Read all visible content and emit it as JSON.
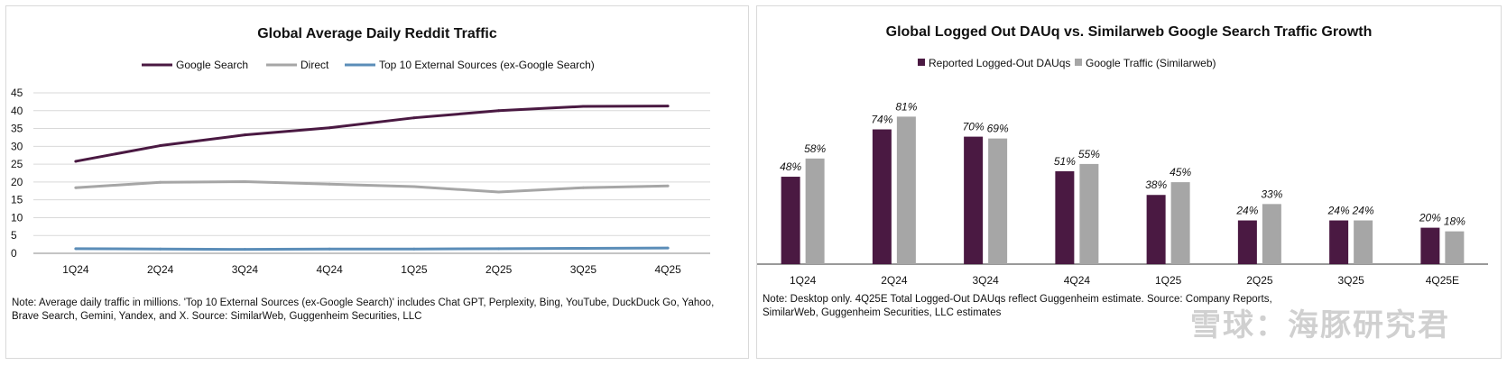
{
  "chart_data": [
    {
      "type": "line",
      "title": "Global Average Daily Reddit Traffic",
      "categories": [
        "1Q24",
        "2Q24",
        "3Q24",
        "4Q24",
        "1Q25",
        "2Q25",
        "3Q25",
        "4Q25"
      ],
      "ylim": [
        0,
        45
      ],
      "yticks": [
        0,
        5,
        10,
        15,
        20,
        25,
        30,
        35,
        40,
        45
      ],
      "grid": true,
      "legend": "top",
      "series": [
        {
          "name": "Google Search",
          "color": "#4a1942",
          "values": [
            25.8,
            30.2,
            33.2,
            35.2,
            38.0,
            40.0,
            41.2,
            41.3
          ]
        },
        {
          "name": "Direct",
          "color": "#a6a6a6",
          "values": [
            18.4,
            19.9,
            20.1,
            19.4,
            18.7,
            17.2,
            18.4,
            18.9
          ]
        },
        {
          "name": "Top 10 External Sources (ex-Google Search)",
          "color": "#5b8db8",
          "values": [
            1.3,
            1.2,
            1.1,
            1.2,
            1.2,
            1.3,
            1.4,
            1.5
          ]
        }
      ],
      "note": "Note: Average daily traffic in millions. 'Top 10 External Sources (ex-Google Search)' includes Chat GPT, Perplexity, Bing, YouTube, DuckDuck Go, Yahoo, Brave Search, Gemini, Yandex, and X. Source: SimilarWeb, Guggenheim Securities, LLC"
    },
    {
      "type": "bar",
      "title": "Global Logged Out DAUq vs. Similarweb Google Search Traffic Growth",
      "categories": [
        "1Q24",
        "2Q24",
        "3Q24",
        "4Q24",
        "1Q25",
        "2Q25",
        "3Q25",
        "4Q25E"
      ],
      "ylim": [
        0,
        100
      ],
      "grid": false,
      "legend": "top",
      "series": [
        {
          "name": "Reported Logged-Out DAUqs",
          "color": "#4a1942",
          "values": [
            48,
            74,
            70,
            51,
            38,
            24,
            24,
            20
          ],
          "labels": [
            "48%",
            "74%",
            "70%",
            "51%",
            "38%",
            "24%",
            "24%",
            "20%"
          ]
        },
        {
          "name": "Google Traffic (Similarweb)",
          "color": "#a6a6a6",
          "values": [
            58,
            81,
            69,
            55,
            45,
            33,
            24,
            18
          ],
          "labels": [
            "58%",
            "81%",
            "69%",
            "55%",
            "45%",
            "33%",
            "24%",
            "18%"
          ]
        }
      ],
      "note": "Note: Desktop only. 4Q25E Total Logged-Out DAUqs reflect Guggenheim estimate. Source: Company Reports, SimilarWeb, Guggenheim Securities, LLC estimates"
    }
  ],
  "watermark": "雪球：海豚研究君"
}
